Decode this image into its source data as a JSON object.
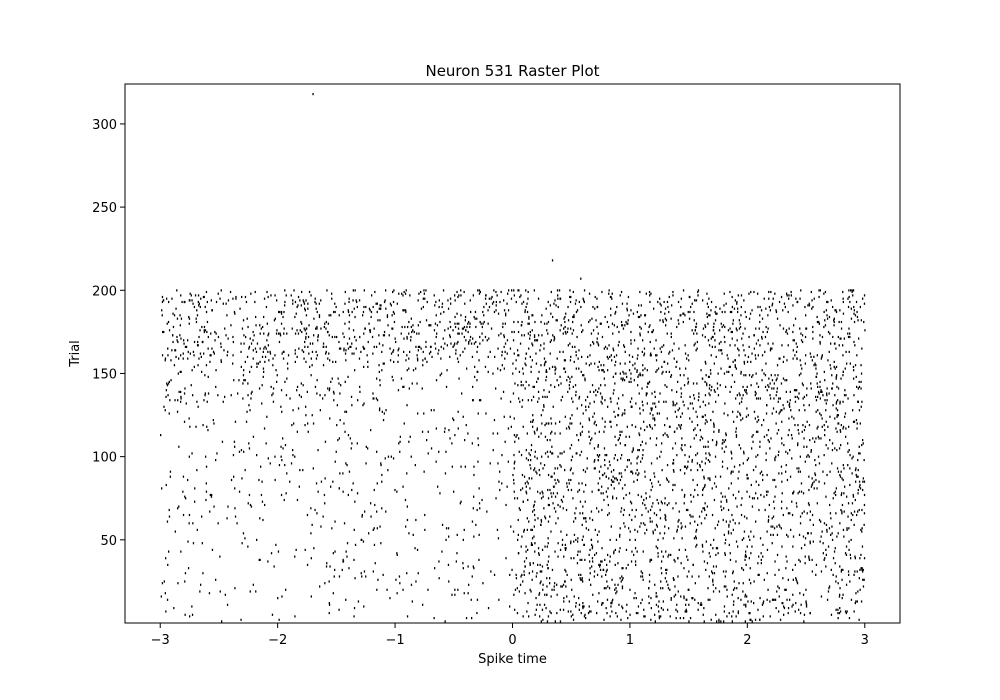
{
  "chart_data": {
    "type": "scatter",
    "title": "Neuron 531 Raster Plot",
    "xlabel": "Spike time",
    "ylabel": "Trial",
    "xlim": [
      -3.3,
      3.3
    ],
    "ylim": [
      0,
      324
    ],
    "xticks": [
      -3,
      -2,
      -1,
      0,
      1,
      2,
      3
    ],
    "xtick_labels": [
      "−3",
      "−2",
      "−1",
      "0",
      "1",
      "2",
      "3"
    ],
    "yticks": [
      50,
      100,
      150,
      200,
      250,
      300
    ],
    "ytick_labels": [
      "50",
      "100",
      "150",
      "200",
      "250",
      "300"
    ],
    "grid": false,
    "legend": "none",
    "marker_color": "#000000",
    "series": [
      {
        "trial_bands": [
          {
            "trials": [
              1,
              60
            ],
            "rate": 7,
            "window": [
              -3.0,
              3.0
            ]
          },
          {
            "trials": [
              1,
              60
            ],
            "rate": 22,
            "window": [
              0.0,
              3.0
            ]
          },
          {
            "trials": [
              61,
              130
            ],
            "rate": 9,
            "window": [
              -3.0,
              3.0
            ]
          },
          {
            "trials": [
              61,
              130
            ],
            "rate": 20,
            "window": [
              0.0,
              3.0
            ]
          },
          {
            "trials": [
              131,
              158
            ],
            "rate": 14,
            "window": [
              -3.0,
              3.0
            ]
          },
          {
            "trials": [
              131,
              158
            ],
            "rate": 22,
            "window": [
              0.0,
              3.0
            ]
          },
          {
            "trials": [
              159,
              200
            ],
            "rate": 32,
            "window": [
              -3.0,
              3.0
            ]
          }
        ],
        "isolated_points": [
          [
            -1.7,
            318
          ],
          [
            0.34,
            218
          ],
          [
            0.58,
            207
          ]
        ]
      }
    ]
  }
}
